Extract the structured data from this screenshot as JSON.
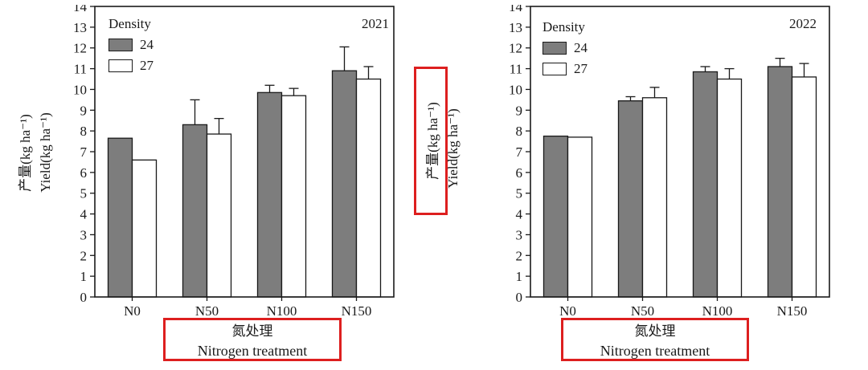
{
  "page": {
    "background": "#ffffff"
  },
  "annotations": {
    "highlight_color": "#dd1f1f",
    "highlighted_items": [
      "y-axis-chinese-label-2022",
      "x-axis-label-2021",
      "x-axis-label-2022"
    ]
  },
  "chart_data": [
    {
      "type": "bar",
      "title": "2021",
      "ylabel_cn": "产量(kg ha⁻¹)",
      "ylabel_en": "Yield(kg ha⁻¹)",
      "xlabel_cn": "氮处理",
      "xlabel_en": "Nitrogen treatment",
      "legend_title": "Density",
      "legend_position": "top-left",
      "categories": [
        "N0",
        "N50",
        "N100",
        "N150"
      ],
      "ylim": [
        0,
        14
      ],
      "ytick_step": 1,
      "grid": false,
      "bar_outline_color": "#1a1a1a",
      "series": [
        {
          "name": "24",
          "color": "#7d7d7d",
          "values": [
            7.65,
            8.3,
            9.85,
            10.9
          ],
          "errors": [
            0,
            1.2,
            0.35,
            1.15
          ]
        },
        {
          "name": "27",
          "color": "#ffffff",
          "values": [
            6.6,
            7.85,
            9.7,
            10.5
          ],
          "errors": [
            0,
            0.75,
            0.35,
            0.6
          ]
        }
      ]
    },
    {
      "type": "bar",
      "title": "2022",
      "ylabel_cn": "产量(kg ha⁻¹)",
      "ylabel_en": "Yield(kg ha⁻¹)",
      "xlabel_cn": "氮处理",
      "xlabel_en": "Nitrogen treatment",
      "legend_title": "Density",
      "legend_position": "top-left",
      "categories": [
        "N0",
        "N50",
        "N100",
        "N150"
      ],
      "ylim": [
        0,
        14
      ],
      "ytick_step": 1,
      "grid": false,
      "bar_outline_color": "#1a1a1a",
      "series": [
        {
          "name": "24",
          "color": "#7d7d7d",
          "values": [
            7.75,
            9.45,
            10.85,
            11.1
          ],
          "errors": [
            0,
            0.2,
            0.25,
            0.4
          ]
        },
        {
          "name": "27",
          "color": "#ffffff",
          "values": [
            7.7,
            9.6,
            10.5,
            10.6
          ],
          "errors": [
            0,
            0.5,
            0.5,
            0.65
          ]
        }
      ]
    }
  ]
}
